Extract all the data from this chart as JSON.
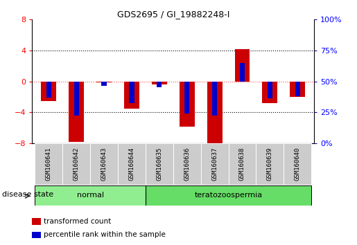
{
  "title": "GDS2695 / GI_19882248-I",
  "samples": [
    "GSM160641",
    "GSM160642",
    "GSM160643",
    "GSM160644",
    "GSM160635",
    "GSM160636",
    "GSM160637",
    "GSM160638",
    "GSM160639",
    "GSM160640"
  ],
  "red_values": [
    -2.5,
    -7.8,
    -0.15,
    -3.5,
    -0.4,
    -5.8,
    -8.1,
    4.2,
    -2.8,
    -2.0
  ],
  "blue_values": [
    -2.1,
    -4.4,
    -0.55,
    -2.8,
    -0.7,
    -4.1,
    -4.4,
    2.4,
    -2.2,
    -1.9
  ],
  "left_ylim": [
    -8,
    8
  ],
  "right_ylim": [
    0,
    100
  ],
  "left_yticks": [
    -8,
    -4,
    0,
    4,
    8
  ],
  "right_yticks": [
    0,
    25,
    50,
    75,
    100
  ],
  "right_yticklabels": [
    "0%",
    "25%",
    "50%",
    "75%",
    "100%"
  ],
  "groups": [
    {
      "label": "normal",
      "indices": [
        0,
        1,
        2,
        3
      ],
      "color": "#90EE90"
    },
    {
      "label": "teratozoospermia",
      "indices": [
        4,
        5,
        6,
        7,
        8,
        9
      ],
      "color": "#66DD66"
    }
  ],
  "disease_state_label": "disease state",
  "legend": [
    {
      "label": "transformed count",
      "color": "#CC0000"
    },
    {
      "label": "percentile rank within the sample",
      "color": "#0000CC"
    }
  ],
  "bar_width": 0.55,
  "blue_bar_width": 0.18,
  "red_color": "#CC0000",
  "blue_color": "#0000CC",
  "bg_color": "#FFFFFF",
  "zero_line_color": "#FF4444",
  "grid_line_color": "#000000",
  "sample_bg_color": "#CCCCCC",
  "sample_border_color": "#AAAAAA"
}
